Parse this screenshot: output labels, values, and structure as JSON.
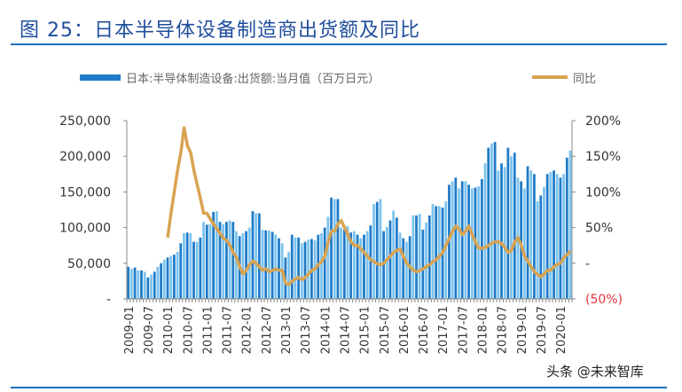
{
  "title": "图 25：日本半导体设备制造商出货额及同比",
  "watermark": "头条 @未来智库",
  "chart_data": {
    "type": "bar+line",
    "colors": {
      "bar": "#1f7bc8",
      "bar_light": "#7cc3ef",
      "line": "#d9a351",
      "negative_label": "#e8323c",
      "title": "#1f4e9c"
    },
    "legend": [
      {
        "label": "日本:半导体制造设备:出货额:当月值（百万日元）",
        "type": "bar"
      },
      {
        "label": "同比",
        "type": "line"
      }
    ],
    "legend_position": "top",
    "x_tick_labels": [
      "2009-01",
      "2009-07",
      "2010-01",
      "2010-07",
      "2011-01",
      "2011-07",
      "2012-01",
      "2012-07",
      "2013-01",
      "2013-07",
      "2014-01",
      "2014-07",
      "2015-01",
      "2015-07",
      "2016-01",
      "2016-07",
      "2017-01",
      "2017-07",
      "2018-01",
      "2018-07",
      "2019-01",
      "2019-07",
      "2020-01"
    ],
    "x_range": [
      "2009-01",
      "2020-04"
    ],
    "y_left": {
      "range": [
        0,
        250000
      ],
      "tick_labels": [
        "-",
        "50,000",
        "100,000",
        "150,000",
        "200,000",
        "250,000"
      ]
    },
    "y_right": {
      "range": [
        -50,
        200
      ],
      "unit": "%",
      "tick_labels": [
        "(50%)",
        "-",
        "50%",
        "100%",
        "150%",
        "200%"
      ]
    },
    "grid": false,
    "series": [
      {
        "name": "日本:半导体制造设备:出货额:当月值（百万日元）",
        "axis": "left",
        "start": "2009-01",
        "values": [
          45000,
          42000,
          44000,
          40000,
          40000,
          38000,
          30000,
          34000,
          38000,
          45000,
          50000,
          55000,
          58000,
          60000,
          62000,
          66000,
          78000,
          92000,
          93000,
          92000,
          80000,
          80000,
          86000,
          108000,
          104000,
          105000,
          122000,
          123000,
          108000,
          105000,
          108000,
          110000,
          108000,
          95000,
          88000,
          92000,
          95000,
          100000,
          123000,
          120000,
          120000,
          97000,
          96000,
          96000,
          94000,
          90000,
          85000,
          78000,
          58000,
          66000,
          90000,
          86000,
          86000,
          78000,
          80000,
          83000,
          84000,
          82000,
          90000,
          92000,
          100000,
          115000,
          142000,
          140000,
          140000,
          100000,
          97000,
          102000,
          93000,
          95000,
          90000,
          85000,
          90000,
          95000,
          103000,
          133000,
          136000,
          140000,
          95000,
          101000,
          110000,
          124000,
          114000,
          93000,
          85000,
          80000,
          88000,
          117000,
          117000,
          119000,
          97000,
          107000,
          117000,
          133000,
          130000,
          130000,
          128000,
          137000,
          160000,
          165000,
          170000,
          155000,
          165000,
          165000,
          160000,
          155000,
          156000,
          158000,
          168000,
          190000,
          212000,
          218000,
          220000,
          180000,
          190000,
          185000,
          212000,
          200000,
          205000,
          170000,
          165000,
          155000,
          186000,
          180000,
          175000,
          137000,
          145000,
          157000,
          175000,
          178000,
          180000,
          175000,
          170000,
          175000,
          198000,
          208000
        ]
      },
      {
        "name": "同比",
        "axis": "right",
        "start": "2010-01",
        "values": [
          36,
          70,
          100,
          130,
          155,
          190,
          165,
          155,
          130,
          110,
          90,
          70,
          70,
          62,
          55,
          48,
          42,
          35,
          32,
          25,
          15,
          8,
          -5,
          -15,
          -10,
          -2,
          3,
          0,
          -5,
          -10,
          -8,
          -12,
          -10,
          -8,
          -10,
          -10,
          -28,
          -30,
          -25,
          -22,
          -20,
          -23,
          -20,
          -15,
          -10,
          -8,
          -2,
          2,
          10,
          30,
          45,
          45,
          55,
          60,
          50,
          40,
          30,
          25,
          25,
          20,
          15,
          10,
          5,
          2,
          -1,
          -2,
          0,
          5,
          10,
          15,
          18,
          20,
          10,
          0,
          -5,
          -10,
          -12,
          -10,
          -8,
          -5,
          -2,
          2,
          5,
          10,
          15,
          25,
          35,
          45,
          52,
          48,
          40,
          45,
          52,
          40,
          30,
          21,
          21,
          22,
          25,
          28,
          30,
          30,
          28,
          22,
          15,
          18,
          30,
          36,
          25,
          10,
          3,
          -5,
          -12,
          -16,
          -19,
          -15,
          -10,
          -10,
          -5,
          -2,
          0,
          8,
          12,
          17
        ]
      }
    ]
  }
}
